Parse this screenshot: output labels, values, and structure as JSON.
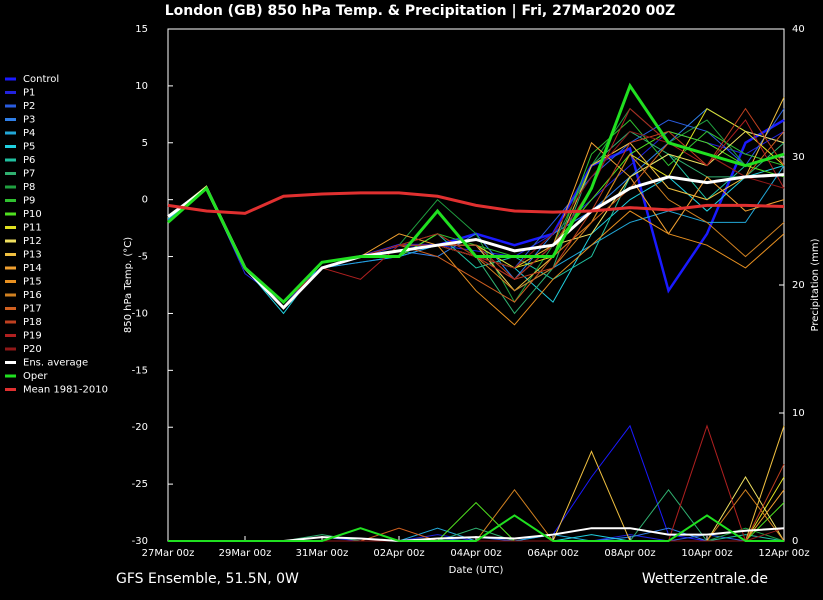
{
  "chart_data": {
    "type": "line",
    "title": "London  (GB)  850 hPa Temp. & Precipitation | Fri, 27Mar2020 00Z",
    "ylabel": "850 hPa Temp. (°C)",
    "y2label": "Precipitation (mm)",
    "xlabel": "Date (UTC)",
    "footer_left": "GFS Ensemble, 51.5N, 0W",
    "footer_right": "Wetterzentrale.de",
    "x": [
      0,
      1,
      2,
      3,
      4,
      5,
      6,
      7,
      8,
      9,
      10,
      11,
      12,
      13,
      14,
      15,
      16
    ],
    "xlim": [
      0,
      16
    ],
    "xticks": [
      {
        "value": 0,
        "label": "27Mar 00z"
      },
      {
        "value": 2,
        "label": "29Mar 00z"
      },
      {
        "value": 4,
        "label": "31Mar 00z"
      },
      {
        "value": 6,
        "label": "02Apr 00z"
      },
      {
        "value": 8,
        "label": "04Apr 00z"
      },
      {
        "value": 10,
        "label": "06Apr 00z"
      },
      {
        "value": 12,
        "label": "08Apr 00z"
      },
      {
        "value": 14,
        "label": "10Apr 00z"
      },
      {
        "value": 16,
        "label": "12Apr 00z"
      }
    ],
    "ylim": [
      -30,
      15
    ],
    "yticks": [
      15,
      10,
      5,
      0,
      -5,
      -10,
      -15,
      -20,
      -25,
      -30
    ],
    "y2lim": [
      0,
      40
    ],
    "y2ticks": [
      0,
      10,
      20,
      30,
      40
    ],
    "grid": false,
    "legend": "left",
    "series": [
      {
        "name": "Control",
        "color": "#1a1aff",
        "values": [
          -1.5,
          1,
          -6,
          -9,
          -6,
          -5,
          -4,
          -4,
          -3,
          -4,
          -3,
          3,
          4.5,
          -8,
          -3,
          5,
          7
        ],
        "precip": [
          0,
          0,
          0,
          0,
          0,
          0,
          0,
          0,
          0,
          0,
          0.5,
          5,
          9,
          0.5,
          0,
          0,
          0
        ]
      },
      {
        "name": "P1",
        "color": "#2222dd",
        "values": [
          -1.5,
          1,
          -6.5,
          -9,
          -6,
          -5.5,
          -5,
          -4,
          -4.5,
          -5,
          -3,
          0,
          3,
          6,
          5,
          4,
          6
        ],
        "precip": [
          0,
          0,
          0,
          0,
          0.3,
          0,
          0,
          0.5,
          0,
          0,
          0,
          0,
          0.5,
          0,
          0,
          0,
          0
        ]
      },
      {
        "name": "P2",
        "color": "#2a5ce0",
        "values": [
          -1.8,
          1.2,
          -6,
          -9.5,
          -6,
          -5,
          -5,
          -4,
          -4,
          -6,
          -2,
          2,
          5,
          7,
          6,
          3,
          8
        ],
        "precip": [
          0,
          0,
          0,
          0,
          0,
          0,
          0,
          0,
          0.3,
          0,
          0,
          0,
          0,
          0,
          0.5,
          0,
          0
        ]
      },
      {
        "name": "P3",
        "color": "#2f7fe8",
        "values": [
          -1.5,
          1,
          -6,
          -9,
          -6,
          -5,
          -4.5,
          -5,
          -3,
          -7,
          -3,
          -1,
          2,
          5,
          8,
          6,
          5
        ],
        "precip": [
          0,
          0,
          0,
          0,
          0,
          0,
          0,
          0,
          0,
          0,
          0,
          0,
          0.3,
          1,
          0,
          0,
          0
        ]
      },
      {
        "name": "P4",
        "color": "#22a8d8",
        "values": [
          -1.5,
          1,
          -6,
          -9,
          -6,
          -5.5,
          -5,
          -4,
          -4,
          -8,
          -6,
          -4,
          -2,
          -1,
          -2,
          -2,
          3
        ],
        "precip": [
          0,
          0,
          0,
          0,
          0,
          0,
          0,
          1,
          0,
          0,
          0.5,
          0,
          0,
          0,
          0,
          0,
          0
        ]
      },
      {
        "name": "P5",
        "color": "#20d0e0",
        "values": [
          -1.7,
          1,
          -6,
          -10,
          -5.5,
          -5,
          -4,
          -4,
          -5,
          -6,
          -9,
          -3,
          0,
          2,
          -1,
          2,
          3
        ],
        "precip": [
          0,
          0,
          0,
          0,
          0,
          0,
          0,
          0,
          0,
          0,
          0,
          0.5,
          0,
          0,
          0,
          0,
          0
        ]
      },
      {
        "name": "P6",
        "color": "#20c0a0",
        "values": [
          -1.5,
          1,
          -6,
          -9.5,
          -6,
          -5,
          -5,
          -3,
          -6,
          -5,
          -7,
          -5,
          2,
          4,
          0,
          3,
          4
        ],
        "precip": [
          0,
          0,
          0,
          0,
          0,
          0,
          0,
          0,
          0,
          0,
          0,
          0,
          0,
          0,
          0,
          0.5,
          0
        ]
      },
      {
        "name": "P7",
        "color": "#30b070",
        "values": [
          -1.5,
          1.2,
          -6,
          -9,
          -6,
          -5,
          -4,
          -4,
          -5,
          -10,
          -6,
          3,
          6,
          4,
          2,
          2,
          5
        ],
        "precip": [
          0,
          0,
          0,
          0,
          0.5,
          0,
          0,
          0,
          1,
          0,
          0,
          0,
          0,
          4,
          0,
          0,
          0
        ]
      },
      {
        "name": "P8",
        "color": "#20a040",
        "values": [
          -1.6,
          1,
          -6,
          -9,
          -6,
          -5,
          -4,
          0,
          -3,
          -9,
          -4,
          3,
          8,
          5,
          7,
          3,
          4
        ],
        "precip": [
          0,
          0,
          0,
          0,
          0,
          0,
          0,
          0,
          0,
          0,
          0,
          0,
          0,
          0,
          0,
          1,
          0
        ]
      },
      {
        "name": "P9",
        "color": "#30c030",
        "values": [
          -1.5,
          1,
          -6,
          -9,
          -6,
          -5,
          -4,
          -3,
          -4,
          -5,
          -5,
          4,
          7,
          3,
          6,
          4,
          3
        ],
        "precip": [
          0,
          0,
          0,
          0,
          0,
          1,
          0,
          0,
          0,
          0,
          0,
          0,
          0,
          0,
          0,
          0,
          0
        ]
      },
      {
        "name": "P10",
        "color": "#50e020",
        "values": [
          -1.5,
          1,
          -6,
          -9,
          -6,
          -5,
          -5,
          -3,
          -5,
          -6,
          -4,
          0,
          4,
          6,
          5,
          3,
          2
        ],
        "precip": [
          0,
          0,
          0,
          0,
          0,
          0,
          0,
          0,
          3,
          0,
          0,
          0,
          0,
          0,
          0,
          0,
          3
        ]
      },
      {
        "name": "P11",
        "color": "#e0e020",
        "values": [
          -1.5,
          1,
          -6,
          -9,
          -6,
          -5,
          -4,
          -4,
          -4,
          -6,
          -5,
          -2,
          4,
          2,
          8,
          6,
          3
        ],
        "precip": [
          0,
          0,
          0,
          0,
          0,
          0,
          0,
          0,
          0,
          0,
          0,
          0,
          0,
          0,
          0,
          0,
          5
        ]
      },
      {
        "name": "P12",
        "color": "#f0e060",
        "values": [
          -1.5,
          1.2,
          -6,
          -9,
          -6,
          -5,
          -4,
          -4,
          -5,
          -7,
          -4,
          -3,
          2,
          4,
          3,
          6,
          5
        ],
        "precip": [
          0,
          0,
          0,
          0,
          0,
          0,
          0,
          0,
          0,
          0,
          0,
          0,
          0,
          0,
          0,
          5,
          0
        ]
      },
      {
        "name": "P13",
        "color": "#f0c040",
        "values": [
          -1.5,
          1,
          -6,
          -9,
          -6,
          -5,
          -4,
          -4,
          -4,
          -8,
          -5,
          3,
          5,
          1,
          0,
          2,
          9
        ],
        "precip": [
          0,
          0,
          0,
          0,
          0,
          0,
          0,
          0,
          0,
          0,
          0,
          7,
          0,
          0,
          0,
          0,
          9
        ]
      },
      {
        "name": "P14",
        "color": "#f0a030",
        "values": [
          -1.5,
          1,
          -6,
          -9,
          -6,
          -5,
          -3,
          -4,
          -5,
          -6,
          -4,
          5,
          2,
          -3,
          2,
          -1,
          0
        ],
        "precip": [
          0,
          0,
          0,
          0,
          0,
          0,
          0,
          0,
          0,
          0,
          0,
          0,
          0,
          0,
          0,
          0,
          4
        ]
      },
      {
        "name": "P15",
        "color": "#e89020",
        "values": [
          -1.5,
          1,
          -6,
          -9,
          -6,
          -5,
          -4,
          -4,
          -8,
          -11,
          -7,
          -4,
          -1,
          -3,
          -4,
          -6,
          -3
        ],
        "precip": [
          0,
          0,
          0,
          0,
          0,
          0,
          0,
          0,
          0,
          0,
          0,
          0,
          0,
          0,
          0,
          0,
          0
        ]
      },
      {
        "name": "P16",
        "color": "#d08020",
        "values": [
          -1.5,
          1,
          -6,
          -9,
          -6,
          -5,
          -4,
          -4,
          -5,
          -8,
          -6,
          -2,
          4,
          0,
          -2,
          -5,
          -2
        ],
        "precip": [
          0,
          0,
          0,
          0,
          0,
          0,
          0,
          0,
          0,
          4,
          0,
          0,
          0,
          0,
          0,
          4,
          0
        ]
      },
      {
        "name": "P17",
        "color": "#d06020",
        "values": [
          -1.5,
          1,
          -6,
          -9,
          -6,
          -5,
          -4,
          -5,
          -7,
          -9,
          -5,
          -2,
          1,
          5,
          4,
          2,
          6
        ],
        "precip": [
          0,
          0,
          0,
          0,
          0,
          0,
          1,
          0,
          0,
          0,
          0,
          0,
          0,
          0,
          0,
          0,
          0
        ]
      },
      {
        "name": "P18",
        "color": "#c04020",
        "values": [
          -1.5,
          1,
          -6,
          -9,
          -6,
          -5,
          -4,
          -4,
          -4,
          -7,
          -6,
          -1,
          5,
          6,
          3,
          8,
          3
        ],
        "precip": [
          0,
          0,
          0,
          0,
          0,
          0,
          0,
          0,
          0,
          0,
          0,
          0,
          0,
          0,
          0,
          0,
          6
        ]
      },
      {
        "name": "P19",
        "color": "#b02020",
        "values": [
          -1.5,
          1,
          -6,
          -9,
          -6,
          -7,
          -4,
          -3,
          -5,
          -7,
          -4,
          1,
          8,
          5,
          3,
          7,
          1
        ],
        "precip": [
          0,
          0,
          0,
          0,
          0,
          0,
          0,
          0,
          0,
          0,
          0,
          0,
          0,
          0,
          9,
          0,
          0
        ]
      },
      {
        "name": "P20",
        "color": "#901818",
        "values": [
          -1.5,
          1,
          -6,
          -9,
          -6,
          -5,
          -4,
          -4,
          -5,
          -6,
          -3,
          2,
          6,
          5,
          4,
          2,
          1
        ],
        "precip": [
          0,
          0,
          0,
          0,
          0,
          0,
          0,
          0,
          0,
          0,
          0,
          0,
          0,
          0,
          0,
          0,
          1
        ]
      },
      {
        "name": "Ens. average",
        "color": "#ffffff",
        "values": [
          -1.5,
          1,
          -6,
          -9.5,
          -6,
          -5,
          -4.5,
          -4,
          -3.5,
          -4.5,
          -4,
          -1,
          1,
          2,
          1.5,
          2,
          2.2
        ],
        "precip": [
          0,
          0,
          0,
          0,
          0.3,
          0.2,
          0,
          0.2,
          0.3,
          0.2,
          0.5,
          1,
          1,
          0.5,
          0.5,
          0.8,
          1
        ]
      },
      {
        "name": "Oper",
        "color": "#20e020",
        "values": [
          -2,
          1,
          -6,
          -9,
          -5.5,
          -5,
          -5,
          -1,
          -5,
          -5,
          -5,
          1,
          10,
          5,
          4,
          3,
          4
        ],
        "precip": [
          0,
          0,
          0,
          0,
          0,
          1,
          0,
          0,
          0,
          2,
          0,
          0,
          0,
          0,
          2,
          0,
          0
        ]
      },
      {
        "name": "Mean 1981-2010",
        "color": "#e03030",
        "values": [
          -0.5,
          -1,
          -1.2,
          0.3,
          0.5,
          0.6,
          0.6,
          0.3,
          -0.5,
          -1,
          -1.1,
          -1,
          -0.7,
          -0.9,
          -0.5,
          -0.5,
          -0.6
        ]
      }
    ]
  }
}
